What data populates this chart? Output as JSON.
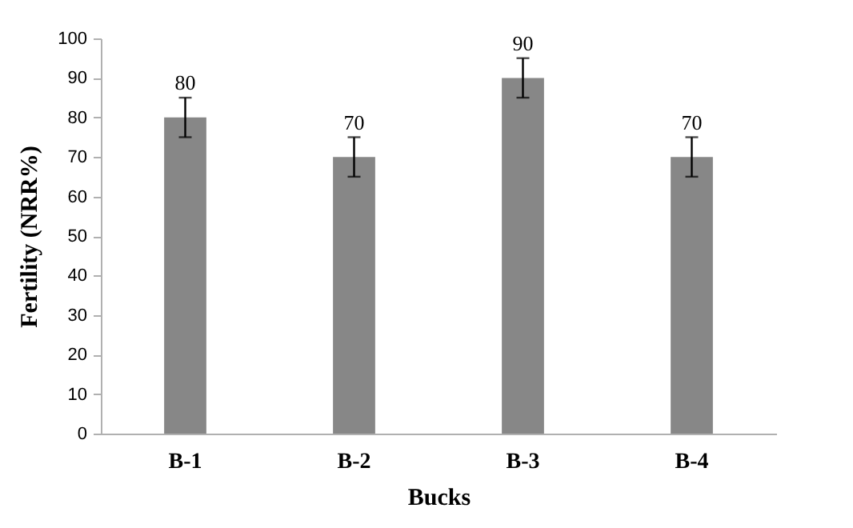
{
  "chart_data": {
    "type": "bar",
    "xlabel": "Bucks",
    "ylabel": "Fertility (NRR%)",
    "categories": [
      "B-1",
      "B-2",
      "B-3",
      "B-4"
    ],
    "values": [
      80,
      70,
      90,
      70
    ],
    "errors": [
      5,
      5,
      5,
      5
    ],
    "color": "#878787",
    "ylim": [
      0,
      100
    ],
    "yticks": [
      0,
      10,
      20,
      30,
      40,
      50,
      60,
      70,
      80,
      90,
      100
    ],
    "data_labels": true,
    "grid": false
  }
}
